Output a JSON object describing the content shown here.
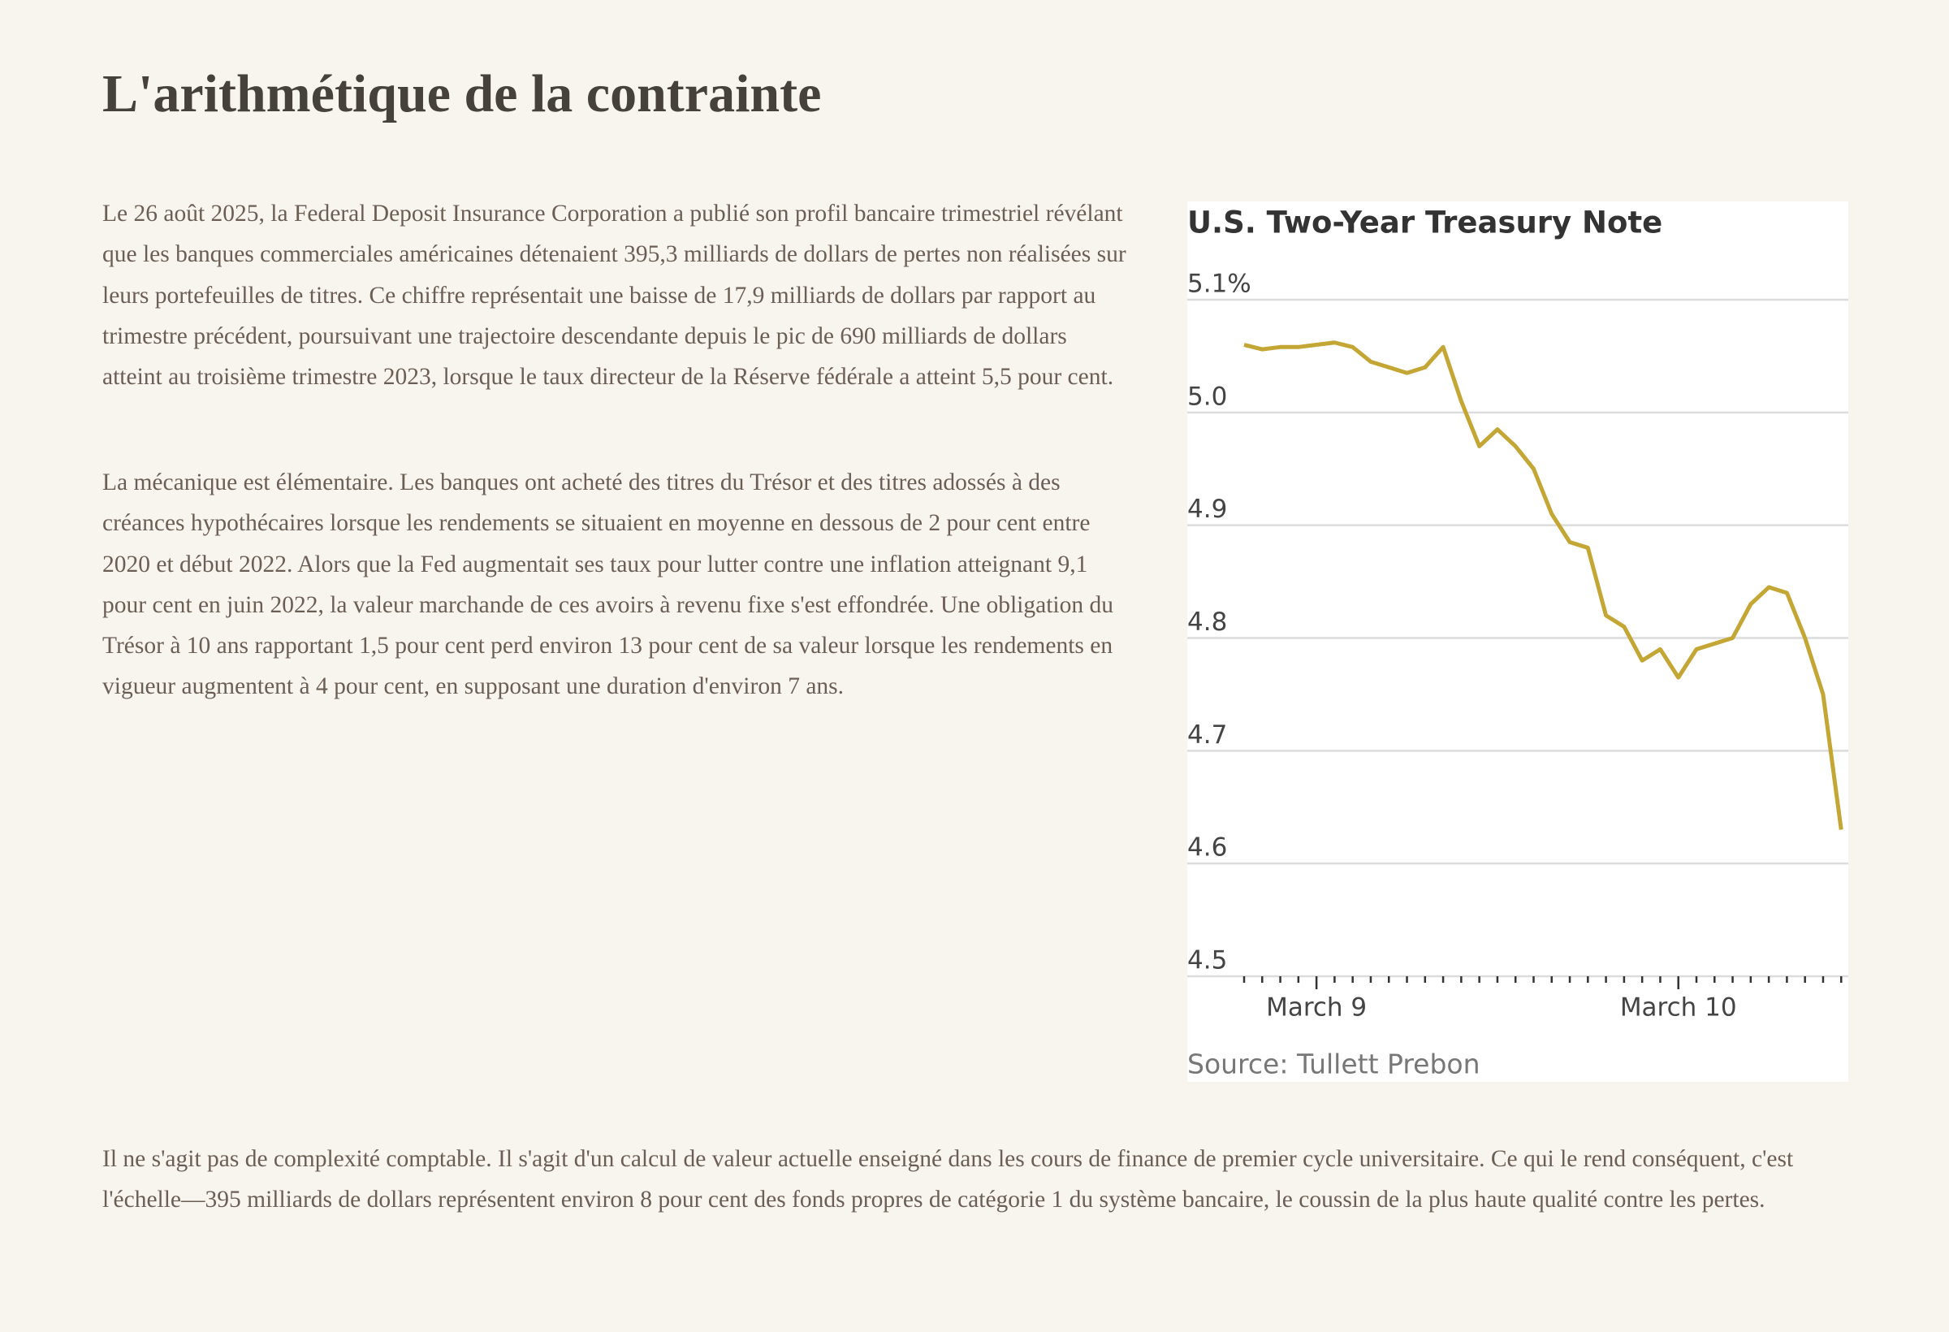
{
  "title": "L'arithmétique de la contrainte",
  "paragraphs": [
    "Le 26 août 2025, la Federal Deposit Insurance Corporation a publié son profil bancaire trimestriel révélant que les banques commerciales américaines détenaient 395,3 milliards de dollars de pertes non réalisées sur leurs portefeuilles de titres. Ce chiffre représentait une baisse de 17,9 milliards de dollars par rapport au trimestre précédent, poursuivant une trajectoire descendante depuis le pic de 690 milliards de dollars atteint au troisième trimestre 2023, lorsque le taux directeur de la Réserve fédérale a atteint 5,5 pour cent.",
    "La mécanique est élémentaire. Les banques ont acheté des titres du Trésor et des titres adossés à des créances hypothécaires lorsque les rendements se situaient en moyenne en dessous de 2 pour cent entre 2020 et début 2022. Alors que la Fed augmentait ses taux pour lutter contre une inflation atteignant 9,1 pour cent en juin 2022, la valeur marchande de ces avoirs à revenu fixe s'est effondrée. Une obligation du Trésor à 10 ans rapportant 1,5 pour cent perd environ 13 pour cent de sa valeur lorsque les rendements en vigueur augmentent à 4 pour cent, en supposant une duration d'environ 7 ans.",
    "Il ne s'agit pas de complexité comptable. Il s'agit d'un calcul de valeur actuelle enseigné dans les cours de finance de premier cycle universitaire. Ce qui le rend conséquent, c'est l'échelle—395 milliards de dollars représentent environ 8 pour cent des fonds propres de catégorie 1 du système bancaire, le coussin de la plus haute qualité contre les pertes."
  ],
  "chart_data": {
    "type": "line",
    "title": "U.S. Two-Year Treasury Note",
    "source": "Source: Tullett Prebon",
    "categories": [
      null,
      null,
      null,
      null,
      "March 9",
      null,
      null,
      null,
      null,
      null,
      null,
      null,
      null,
      null,
      null,
      null,
      null,
      null,
      null,
      null,
      null,
      null,
      null,
      null,
      "March 10",
      null,
      null,
      null,
      null,
      null,
      null,
      null,
      null,
      null
    ],
    "values": [
      5.06,
      5.056,
      5.058,
      5.058,
      5.06,
      5.062,
      5.058,
      5.045,
      5.04,
      5.035,
      5.04,
      5.058,
      5.01,
      4.97,
      4.985,
      4.97,
      4.95,
      4.91,
      4.885,
      4.88,
      4.82,
      4.81,
      4.78,
      4.79,
      4.765,
      4.79,
      4.795,
      4.8,
      4.83,
      4.845,
      4.84,
      4.8,
      4.75,
      4.63
    ],
    "color": "#c4a634",
    "ylim": [
      4.5,
      5.1
    ],
    "yticks": [
      4.5,
      4.6,
      4.7,
      4.8,
      4.9,
      {
        "value": 5,
        "label": "5.0"
      },
      {
        "value": 5.1,
        "label": "5.1%"
      }
    ],
    "grid": true
  }
}
